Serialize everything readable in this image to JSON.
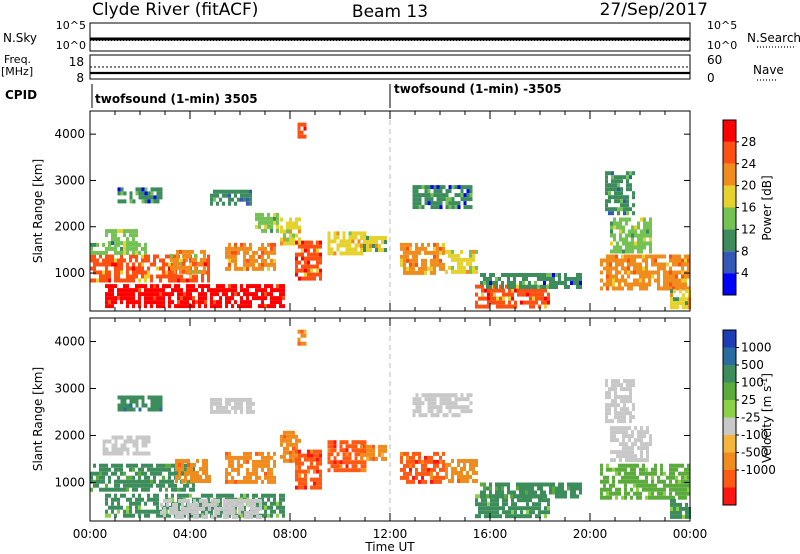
{
  "header": {
    "station": "Clyde River (fitACF)",
    "beam": "Beam 13",
    "date": "27/Sep/2017"
  },
  "noise_panel": {
    "left_label": "N.Sky",
    "right_label": "N.Search",
    "left_ticks": [
      "10^5",
      "10^0"
    ],
    "right_ticks": [
      "10^5",
      "10^0"
    ],
    "legend_line": "dotted"
  },
  "freq_panel": {
    "left_label_1": "Freq.",
    "left_label_2": "[MHz]",
    "right_label": "Nave",
    "left_ticks": [
      "18",
      "8"
    ],
    "right_ticks": [
      "60",
      "0"
    ],
    "legend_line": "dotted"
  },
  "cpid": {
    "label": "CPID",
    "segments": [
      {
        "name": "twofsound (1-min) 3505",
        "start_hour": 0
      },
      {
        "name": "twofsound (1-min) -3505",
        "start_hour": 12
      }
    ]
  },
  "chart_data": [
    {
      "type": "heatmap",
      "title": "Power",
      "ylabel": "Slant Range [km]",
      "xlabel": "Time UT",
      "x_ticks": [
        "00:00",
        "04:00",
        "08:00",
        "12:00",
        "16:00",
        "20:00",
        "00:00"
      ],
      "xlim": [
        0,
        24
      ],
      "ylim": [
        180,
        4500
      ],
      "y_ticks": [
        1000,
        2000,
        3000,
        4000
      ],
      "colorbar": {
        "label": "Power [dB]",
        "ticks": [
          4,
          8,
          12,
          16,
          20,
          24,
          28
        ],
        "range": [
          0,
          32
        ],
        "colors": [
          "#0000ff",
          "#3358b5",
          "#3c8c5c",
          "#73c253",
          "#e6d22e",
          "#f08c1e",
          "#ff5014",
          "#ff0000"
        ]
      },
      "regions": [
        {
          "t0": 0.0,
          "t1": 4.8,
          "r0": 850,
          "r1": 1400,
          "value": 24
        },
        {
          "t0": 0.6,
          "t1": 7.8,
          "r0": 250,
          "r1": 760,
          "value": 30
        },
        {
          "t0": 0.0,
          "t1": 2.2,
          "r0": 1400,
          "r1": 1650,
          "value": 14
        },
        {
          "t0": 0.6,
          "t1": 1.9,
          "r0": 1650,
          "r1": 1950,
          "value": 12
        },
        {
          "t0": 1.1,
          "t1": 2.9,
          "r0": 2550,
          "r1": 2850,
          "value": 8
        },
        {
          "t0": 3.2,
          "t1": 4.6,
          "r0": 1000,
          "r1": 1500,
          "value": 20
        },
        {
          "t0": 5.4,
          "t1": 7.4,
          "r0": 1050,
          "r1": 1650,
          "value": 22
        },
        {
          "t0": 4.8,
          "t1": 6.6,
          "r0": 2500,
          "r1": 2800,
          "value": 10
        },
        {
          "t0": 6.6,
          "t1": 7.5,
          "r0": 1900,
          "r1": 2300,
          "value": 14
        },
        {
          "t0": 7.6,
          "t1": 8.4,
          "r0": 1600,
          "r1": 2200,
          "value": 18
        },
        {
          "t0": 8.2,
          "t1": 9.2,
          "r0": 900,
          "r1": 1700,
          "value": 24
        },
        {
          "t0": 8.3,
          "t1": 8.6,
          "r0": 3950,
          "r1": 4250,
          "value": 26
        },
        {
          "t0": 9.5,
          "t1": 11.0,
          "r0": 1400,
          "r1": 1900,
          "value": 18
        },
        {
          "t0": 10.8,
          "t1": 11.8,
          "r0": 1500,
          "r1": 1800,
          "value": 16
        },
        {
          "t0": 12.4,
          "t1": 14.2,
          "r0": 1000,
          "r1": 1650,
          "value": 22
        },
        {
          "t0": 12.9,
          "t1": 15.2,
          "r0": 2400,
          "r1": 2900,
          "value": 8
        },
        {
          "t0": 14.2,
          "t1": 15.4,
          "r0": 1000,
          "r1": 1500,
          "value": 18
        },
        {
          "t0": 15.4,
          "t1": 18.4,
          "r0": 250,
          "r1": 750,
          "value": 24
        },
        {
          "t0": 15.6,
          "t1": 19.6,
          "r0": 700,
          "r1": 1000,
          "value": 8
        },
        {
          "t0": 20.4,
          "t1": 24.0,
          "r0": 700,
          "r1": 1400,
          "value": 22
        },
        {
          "t0": 20.8,
          "t1": 22.4,
          "r0": 1500,
          "r1": 2200,
          "value": 14
        },
        {
          "t0": 20.6,
          "t1": 21.8,
          "r0": 2300,
          "r1": 3200,
          "value": 10
        },
        {
          "t0": 23.2,
          "t1": 24.0,
          "r0": 250,
          "r1": 650,
          "value": 16
        }
      ]
    },
    {
      "type": "heatmap",
      "title": "Velocity",
      "ylabel": "Slant Range [km]",
      "xlabel": "Time UT",
      "x_ticks": [
        "00:00",
        "04:00",
        "08:00",
        "12:00",
        "16:00",
        "20:00",
        "00:00"
      ],
      "xlim": [
        0,
        24
      ],
      "ylim": [
        180,
        4500
      ],
      "y_ticks": [
        1000,
        2000,
        3000,
        4000
      ],
      "colorbar": {
        "label": "Velocity [m s^-1]",
        "ticks": [
          "1000",
          "500",
          "100",
          "25",
          "-25",
          "-100",
          "-500",
          "-1000"
        ],
        "colors": [
          "#1e3cb4",
          "#2a6ca0",
          "#3c8c5c",
          "#5aab3c",
          "#8cd046",
          "#c8c8c8",
          "#f5b43c",
          "#f08c1e",
          "#ff5a14",
          "#ff1414"
        ]
      },
      "regions": [
        {
          "t0": 0.0,
          "t1": 4.2,
          "r0": 850,
          "r1": 1400,
          "value": 100
        },
        {
          "t0": 0.6,
          "t1": 7.8,
          "r0": 250,
          "r1": 760,
          "value": 60
        },
        {
          "t0": 2.8,
          "t1": 6.8,
          "r0": 300,
          "r1": 650,
          "value": 0
        },
        {
          "t0": 0.5,
          "t1": 2.4,
          "r0": 1650,
          "r1": 2000,
          "value": 0
        },
        {
          "t0": 1.1,
          "t1": 2.9,
          "r0": 2550,
          "r1": 2850,
          "value": 200
        },
        {
          "t0": 3.4,
          "t1": 4.8,
          "r0": 1000,
          "r1": 1500,
          "value": -300
        },
        {
          "t0": 5.4,
          "t1": 7.4,
          "r0": 1050,
          "r1": 1650,
          "value": -300
        },
        {
          "t0": 4.8,
          "t1": 6.6,
          "r0": 2500,
          "r1": 2800,
          "value": 0
        },
        {
          "t0": 7.6,
          "t1": 8.4,
          "r0": 1500,
          "r1": 2100,
          "value": -300
        },
        {
          "t0": 8.2,
          "t1": 9.2,
          "r0": 900,
          "r1": 1700,
          "value": -500
        },
        {
          "t0": 8.3,
          "t1": 8.6,
          "r0": 3950,
          "r1": 4250,
          "value": -200
        },
        {
          "t0": 9.5,
          "t1": 11.0,
          "r0": 1300,
          "r1": 1900,
          "value": -400
        },
        {
          "t0": 10.8,
          "t1": 11.8,
          "r0": 1500,
          "r1": 1800,
          "value": -200
        },
        {
          "t0": 12.4,
          "t1": 14.2,
          "r0": 1000,
          "r1": 1650,
          "value": -600
        },
        {
          "t0": 12.9,
          "t1": 15.2,
          "r0": 2400,
          "r1": 2900,
          "value": 0
        },
        {
          "t0": 14.2,
          "t1": 15.4,
          "r0": 1000,
          "r1": 1500,
          "value": -300
        },
        {
          "t0": 15.4,
          "t1": 18.4,
          "r0": 250,
          "r1": 750,
          "value": 60
        },
        {
          "t0": 15.6,
          "t1": 19.6,
          "r0": 700,
          "r1": 1000,
          "value": 100
        },
        {
          "t0": 20.4,
          "t1": 24.0,
          "r0": 700,
          "r1": 1400,
          "value": 30
        },
        {
          "t0": 20.8,
          "t1": 22.4,
          "r0": 1500,
          "r1": 2200,
          "value": 0
        },
        {
          "t0": 20.6,
          "t1": 21.8,
          "r0": 2300,
          "r1": 3200,
          "value": 0
        },
        {
          "t0": 23.2,
          "t1": 24.0,
          "r0": 250,
          "r1": 650,
          "value": 60
        }
      ]
    }
  ]
}
